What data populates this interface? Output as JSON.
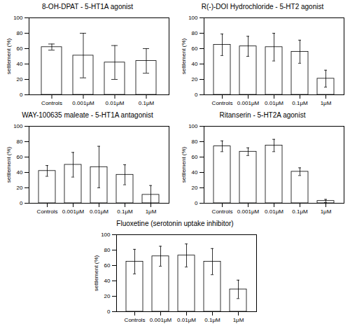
{
  "chart_data": [
    {
      "type": "bar",
      "title": "8-OH-DPAT - 5-HT1A agonist",
      "categories": [
        "Controls",
        "0.001μM",
        "0.01μM",
        "0.1μM"
      ],
      "values": [
        62,
        51,
        42,
        44
      ],
      "errors": [
        4,
        29,
        22,
        16
      ],
      "color": "white",
      "ylabel": "settlement (%)",
      "ylim": [
        0,
        100
      ],
      "yticks": [
        0,
        20,
        40,
        60,
        80,
        100
      ],
      "grid": false
    },
    {
      "type": "bar",
      "title": "R(-)-DOI Hydrochloride - 5-HT2 agonist",
      "categories": [
        "Controls",
        "0.001μM",
        "0.01μM",
        "0.1μM",
        "1μM"
      ],
      "values": [
        65,
        63,
        62,
        56,
        21
      ],
      "errors": [
        14,
        13,
        18,
        15,
        11
      ],
      "color": "white",
      "ylabel": "settlement (%)",
      "ylim": [
        0,
        100
      ],
      "yticks": [
        0,
        20,
        40,
        60,
        80,
        100
      ],
      "grid": false
    },
    {
      "type": "bar",
      "title": "WAY-100635 maleate - 5-HT1A antagonist",
      "categories": [
        "Controls",
        "0.001μM",
        "0.01μM",
        "0.1μM",
        "1μM"
      ],
      "values": [
        42,
        50,
        47,
        37,
        11
      ],
      "errors": [
        7,
        16,
        27,
        13,
        12
      ],
      "color": "white",
      "ylabel": "settlement (%)",
      "ylim": [
        0,
        100
      ],
      "yticks": [
        0,
        20,
        40,
        60,
        80,
        100
      ],
      "grid": false
    },
    {
      "type": "bar",
      "title": "Ritanserin - 5-HT2A agonist",
      "categories": [
        "Controls",
        "0.001μM",
        "0.01μM",
        "0.1μM",
        "1μM"
      ],
      "values": [
        74,
        67,
        75,
        41,
        3
      ],
      "errors": [
        7,
        5,
        8,
        5,
        2
      ],
      "color": "white",
      "ylabel": "settlement (%)",
      "ylim": [
        0,
        100
      ],
      "yticks": [
        0,
        20,
        40,
        60,
        80,
        100
      ],
      "grid": false
    },
    {
      "type": "bar",
      "title": "Fluoxetine (serotonin uptake inhibitor)",
      "categories": [
        "Controls",
        "0.001μM",
        "0.01μM",
        "0.1μM",
        "1μM"
      ],
      "values": [
        65,
        72,
        73,
        65,
        29
      ],
      "errors": [
        16,
        13,
        15,
        17,
        12
      ],
      "color": "white",
      "ylabel": "settlement (%)",
      "ylim": [
        0,
        100
      ],
      "yticks": [
        0,
        20,
        40,
        60,
        80,
        100
      ],
      "grid": false
    }
  ]
}
